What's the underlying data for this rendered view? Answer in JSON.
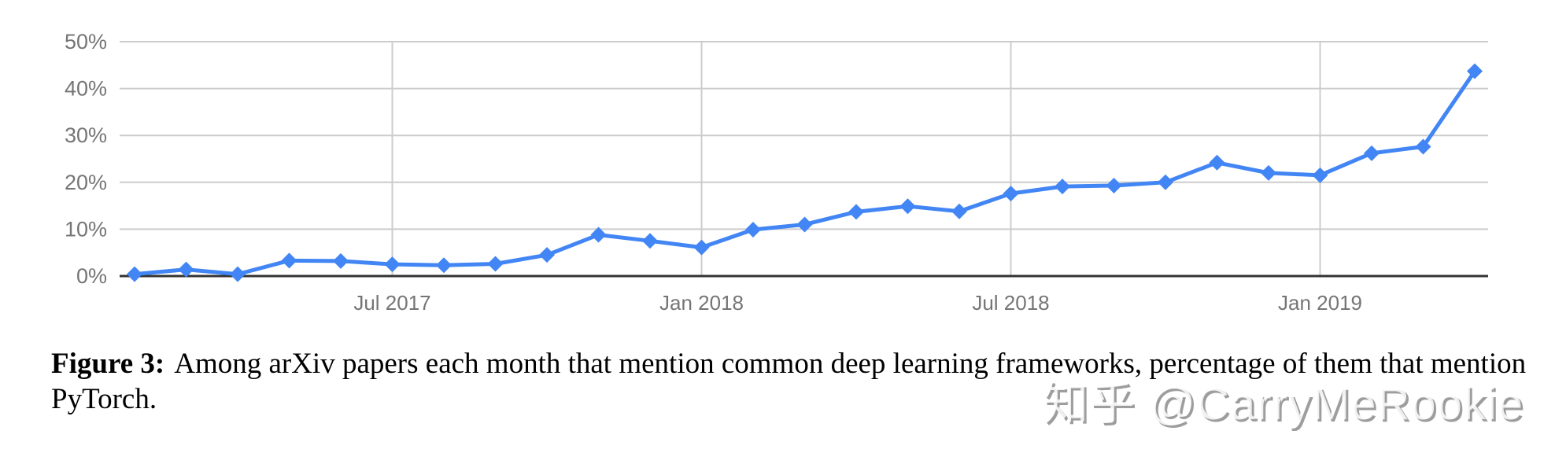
{
  "chart_data": {
    "type": "line",
    "title": "",
    "xlabel": "",
    "ylabel": "",
    "x": [
      "Feb 2017",
      "Mar 2017",
      "Apr 2017",
      "May 2017",
      "Jun 2017",
      "Jul 2017",
      "Aug 2017",
      "Sep 2017",
      "Oct 2017",
      "Nov 2017",
      "Dec 2017",
      "Jan 2018",
      "Feb 2018",
      "Mar 2018",
      "Apr 2018",
      "May 2018",
      "Jun 2018",
      "Jul 2018",
      "Aug 2018",
      "Sep 2018",
      "Oct 2018",
      "Nov 2018",
      "Dec 2018",
      "Jan 2019",
      "Feb 2019",
      "Mar 2019",
      "Apr 2019"
    ],
    "series": [
      {
        "name": "PyTorch share",
        "color": "#4285F4",
        "marker": "diamond",
        "values": [
          0.4,
          1.4,
          0.4,
          3.3,
          3.2,
          2.5,
          2.3,
          2.6,
          4.5,
          8.8,
          7.5,
          6.1,
          9.9,
          11.0,
          13.7,
          14.9,
          13.8,
          17.6,
          19.1,
          19.3,
          20.0,
          24.2,
          22.0,
          21.5,
          26.2,
          27.6,
          43.7
        ]
      }
    ],
    "ylim": [
      0,
      50
    ],
    "y_ticks": [
      0,
      10,
      20,
      30,
      40,
      50
    ],
    "y_tick_labels": [
      "0%",
      "10%",
      "20%",
      "30%",
      "40%",
      "50%"
    ],
    "x_tick_labels": [
      {
        "label": "Jul 2017",
        "index": 5
      },
      {
        "label": "Jan 2018",
        "index": 11
      },
      {
        "label": "Jul 2018",
        "index": 17
      },
      {
        "label": "Jan 2019",
        "index": 23
      }
    ],
    "grid": true,
    "legend": "none"
  },
  "caption": {
    "label": "Figure 3:",
    "text": "Among arXiv papers each month that mention common deep learning frameworks, percentage of them that mention PyTorch."
  },
  "watermark": {
    "text": "知乎 @CarryMeRookie"
  },
  "colors": {
    "line": "#4285F4",
    "grid": "#cccccc",
    "axis": "#333333",
    "tick_text": "#757575"
  }
}
